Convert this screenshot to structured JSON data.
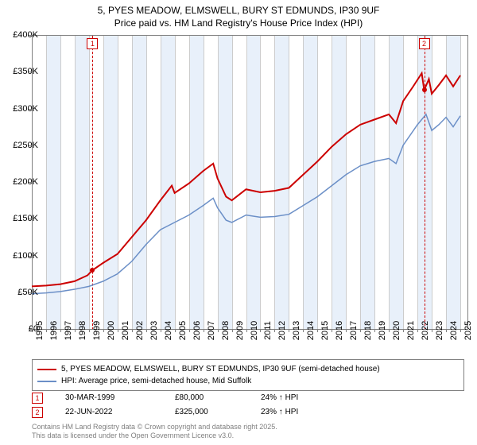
{
  "title": {
    "line1": "5, PYES MEADOW, ELMSWELL, BURY ST EDMUNDS, IP30 9UF",
    "line2": "Price paid vs. HM Land Registry's House Price Index (HPI)"
  },
  "chart": {
    "type": "line",
    "background_color": "#ffffff",
    "plot_band_color": "#e8f0fa",
    "grid_color": "#cccccc",
    "x": {
      "min": 1995,
      "max": 2025.5,
      "ticks": [
        1995,
        1996,
        1997,
        1998,
        1999,
        2000,
        2001,
        2002,
        2003,
        2004,
        2005,
        2006,
        2007,
        2008,
        2009,
        2010,
        2011,
        2012,
        2013,
        2014,
        2015,
        2016,
        2017,
        2018,
        2019,
        2020,
        2021,
        2022,
        2023,
        2024,
        2025
      ]
    },
    "y": {
      "min": 0,
      "max": 400000,
      "tick_step": 50000,
      "labels": [
        "£0",
        "£50K",
        "£100K",
        "£150K",
        "£200K",
        "£250K",
        "£300K",
        "£350K",
        "£400K"
      ]
    },
    "series": [
      {
        "name": "5, PYES MEADOW, ELMSWELL, BURY ST EDMUNDS, IP30 9UF (semi-detached house)",
        "color": "#cc0000",
        "line_width": 2,
        "data": [
          [
            1995,
            58000
          ],
          [
            1996,
            59000
          ],
          [
            1997,
            61000
          ],
          [
            1998,
            65000
          ],
          [
            1998.9,
            73000
          ],
          [
            1999.25,
            80000
          ],
          [
            2000,
            90000
          ],
          [
            2001,
            102000
          ],
          [
            2002,
            125000
          ],
          [
            2003,
            148000
          ],
          [
            2004,
            175000
          ],
          [
            2004.8,
            195000
          ],
          [
            2005,
            185000
          ],
          [
            2006,
            198000
          ],
          [
            2007,
            215000
          ],
          [
            2007.7,
            225000
          ],
          [
            2008,
            205000
          ],
          [
            2008.6,
            180000
          ],
          [
            2009,
            175000
          ],
          [
            2010,
            190000
          ],
          [
            2011,
            186000
          ],
          [
            2012,
            188000
          ],
          [
            2013,
            192000
          ],
          [
            2014,
            210000
          ],
          [
            2015,
            228000
          ],
          [
            2016,
            248000
          ],
          [
            2017,
            265000
          ],
          [
            2018,
            278000
          ],
          [
            2019,
            285000
          ],
          [
            2020,
            292000
          ],
          [
            2020.5,
            280000
          ],
          [
            2021,
            310000
          ],
          [
            2021.7,
            330000
          ],
          [
            2022.3,
            348000
          ],
          [
            2022.47,
            325000
          ],
          [
            2022.8,
            340000
          ],
          [
            2023,
            320000
          ],
          [
            2023.5,
            332000
          ],
          [
            2024,
            345000
          ],
          [
            2024.5,
            330000
          ],
          [
            2025,
            345000
          ]
        ]
      },
      {
        "name": "HPI: Average price, semi-detached house, Mid Suffolk",
        "color": "#6b8fc7",
        "line_width": 1.5,
        "data": [
          [
            1995,
            48000
          ],
          [
            1996,
            49000
          ],
          [
            1997,
            51000
          ],
          [
            1998,
            54000
          ],
          [
            1999,
            58000
          ],
          [
            2000,
            65000
          ],
          [
            2001,
            75000
          ],
          [
            2002,
            92000
          ],
          [
            2003,
            115000
          ],
          [
            2004,
            135000
          ],
          [
            2005,
            145000
          ],
          [
            2006,
            155000
          ],
          [
            2007,
            168000
          ],
          [
            2007.7,
            178000
          ],
          [
            2008,
            165000
          ],
          [
            2008.6,
            148000
          ],
          [
            2009,
            145000
          ],
          [
            2010,
            155000
          ],
          [
            2011,
            152000
          ],
          [
            2012,
            153000
          ],
          [
            2013,
            156000
          ],
          [
            2014,
            168000
          ],
          [
            2015,
            180000
          ],
          [
            2016,
            195000
          ],
          [
            2017,
            210000
          ],
          [
            2018,
            222000
          ],
          [
            2019,
            228000
          ],
          [
            2020,
            232000
          ],
          [
            2020.5,
            225000
          ],
          [
            2021,
            250000
          ],
          [
            2022,
            278000
          ],
          [
            2022.6,
            292000
          ],
          [
            2023,
            270000
          ],
          [
            2023.5,
            278000
          ],
          [
            2024,
            288000
          ],
          [
            2024.5,
            275000
          ],
          [
            2025,
            290000
          ]
        ]
      }
    ],
    "sales": [
      {
        "n": "1",
        "date": "30-MAR-1999",
        "x": 1999.25,
        "price": 80000,
        "price_label": "£80,000",
        "diff": "24% ↑ HPI",
        "color": "#cc0000"
      },
      {
        "n": "2",
        "date": "22-JUN-2022",
        "x": 2022.47,
        "price": 325000,
        "price_label": "£325,000",
        "diff": "23% ↑ HPI",
        "color": "#cc0000"
      }
    ],
    "sale_line_color": "#cc0000"
  },
  "attribution": {
    "line1": "Contains HM Land Registry data © Crown copyright and database right 2025.",
    "line2": "This data is licensed under the Open Government Licence v3.0."
  }
}
